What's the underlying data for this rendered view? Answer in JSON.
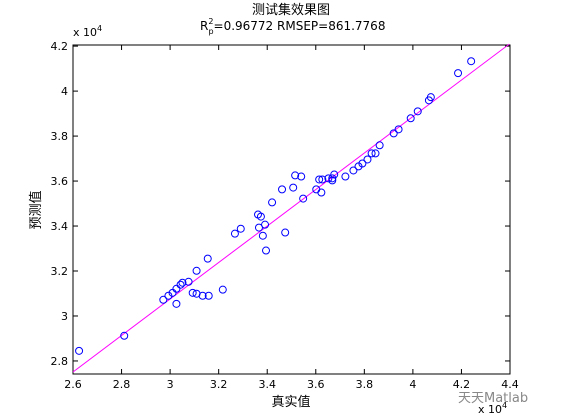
{
  "chart_data": {
    "type": "scatter",
    "title": "测试集效果图",
    "subtitle": {
      "r": "R",
      "sup": "2",
      "sub": "p",
      "rest": "=0.96772  RMSEP=861.7768"
    },
    "x_label": "真实值",
    "y_label": "预测值",
    "x_multiplier": {
      "base": "x 10",
      "exponent": "4"
    },
    "y_multiplier": {
      "base": "x 10",
      "exponent": "4"
    },
    "watermark": "天天Matlab",
    "xlim": [
      2.6,
      4.4
    ],
    "ylim": [
      2.742,
      4.205
    ],
    "xticks": [
      2.6,
      2.8,
      3,
      3.2,
      3.4,
      3.6,
      3.8,
      4,
      4.2,
      4.4
    ],
    "yticks": [
      2.8,
      3,
      3.2,
      3.4,
      3.6,
      3.8,
      4,
      4.2
    ],
    "grid": false,
    "x": [
      2.625,
      2.811,
      2.972,
      2.993,
      3.01,
      3.026,
      3.026,
      3.043,
      3.051,
      3.076,
      3.093,
      3.109,
      3.109,
      3.134,
      3.159,
      3.155,
      3.217,
      3.267,
      3.291,
      3.362,
      3.374,
      3.366,
      3.382,
      3.391,
      3.395,
      3.42,
      3.474,
      3.461,
      3.507,
      3.515,
      3.54,
      3.548,
      3.602,
      3.614,
      3.623,
      3.627,
      3.652,
      3.668,
      3.676,
      3.668,
      3.722,
      3.755,
      3.776,
      3.792,
      3.813,
      3.83,
      3.846,
      3.863,
      3.921,
      3.941,
      3.991,
      4.02,
      4.066,
      4.074,
      4.186,
      4.24
    ],
    "series": [
      {
        "color": "#0000ff",
        "values": [
          2.845,
          2.912,
          3.072,
          3.09,
          3.103,
          3.121,
          3.054,
          3.139,
          3.148,
          3.152,
          3.103,
          3.201,
          3.099,
          3.09,
          3.09,
          3.255,
          3.117,
          3.366,
          3.388,
          3.451,
          3.442,
          3.393,
          3.357,
          3.406,
          3.291,
          3.505,
          3.371,
          3.563,
          3.571,
          3.625,
          3.62,
          3.522,
          3.563,
          3.607,
          3.549,
          3.607,
          3.612,
          3.612,
          3.629,
          3.603,
          3.62,
          3.647,
          3.665,
          3.678,
          3.696,
          3.723,
          3.723,
          3.759,
          3.812,
          3.83,
          3.879,
          3.91,
          3.959,
          3.973,
          4.08,
          4.133
        ]
      }
    ],
    "fit_line": {
      "color": "#ff00ff",
      "x": [
        2.6,
        4.397
      ],
      "y": [
        2.751,
        4.209
      ]
    }
  }
}
